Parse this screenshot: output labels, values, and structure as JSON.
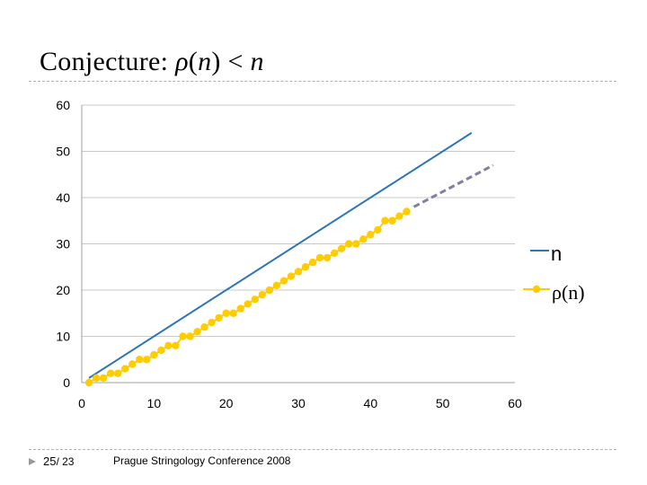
{
  "slide": {
    "title_prefix": "Conjecture: ",
    "title_rho": "ρ",
    "title_paren_open": "(",
    "title_n1": "n",
    "title_mid": ") < ",
    "title_n2": "n",
    "page_current": "25",
    "page_sep": "/ 23",
    "conference": "Prague Stringology Conference 2008"
  },
  "colors": {
    "n_line": "#2e75b6",
    "rho_line": "#ffcc00",
    "rho_dashed": "#8080a0",
    "grid": "#c8c8c8",
    "axis": "#a0a0a0"
  },
  "chart_data": {
    "type": "line",
    "xlim": [
      0,
      60
    ],
    "ylim": [
      0,
      60
    ],
    "xticks": [
      "0",
      "10",
      "20",
      "30",
      "40",
      "50",
      "60"
    ],
    "yticks": [
      "0",
      "10",
      "20",
      "30",
      "40",
      "50",
      "60"
    ],
    "grid": "horizontal",
    "legend": "right",
    "series": [
      {
        "name": "n",
        "x": [
          1,
          54
        ],
        "y": [
          1,
          54
        ]
      },
      {
        "name": "ρ(n)",
        "x": [
          1,
          2,
          3,
          4,
          5,
          6,
          7,
          8,
          9,
          10,
          11,
          12,
          13,
          14,
          15,
          16,
          17,
          18,
          19,
          20,
          21,
          22,
          23,
          24,
          25,
          26,
          27,
          28,
          29,
          30,
          31,
          32,
          33,
          34,
          35,
          36,
          37,
          38,
          39,
          40,
          41,
          42,
          43,
          44,
          45
        ],
        "y": [
          0,
          1,
          1,
          2,
          2,
          3,
          4,
          5,
          5,
          6,
          7,
          8,
          8,
          10,
          10,
          11,
          12,
          13,
          14,
          15,
          15,
          16,
          17,
          18,
          19,
          20,
          21,
          22,
          23,
          24,
          25,
          26,
          27,
          27,
          28,
          29,
          30,
          30,
          31,
          32,
          33,
          35,
          35,
          36,
          37
        ]
      },
      {
        "name": "",
        "style": "dashed",
        "x": [
          46,
          57
        ],
        "y": [
          38,
          47
        ]
      }
    ]
  }
}
